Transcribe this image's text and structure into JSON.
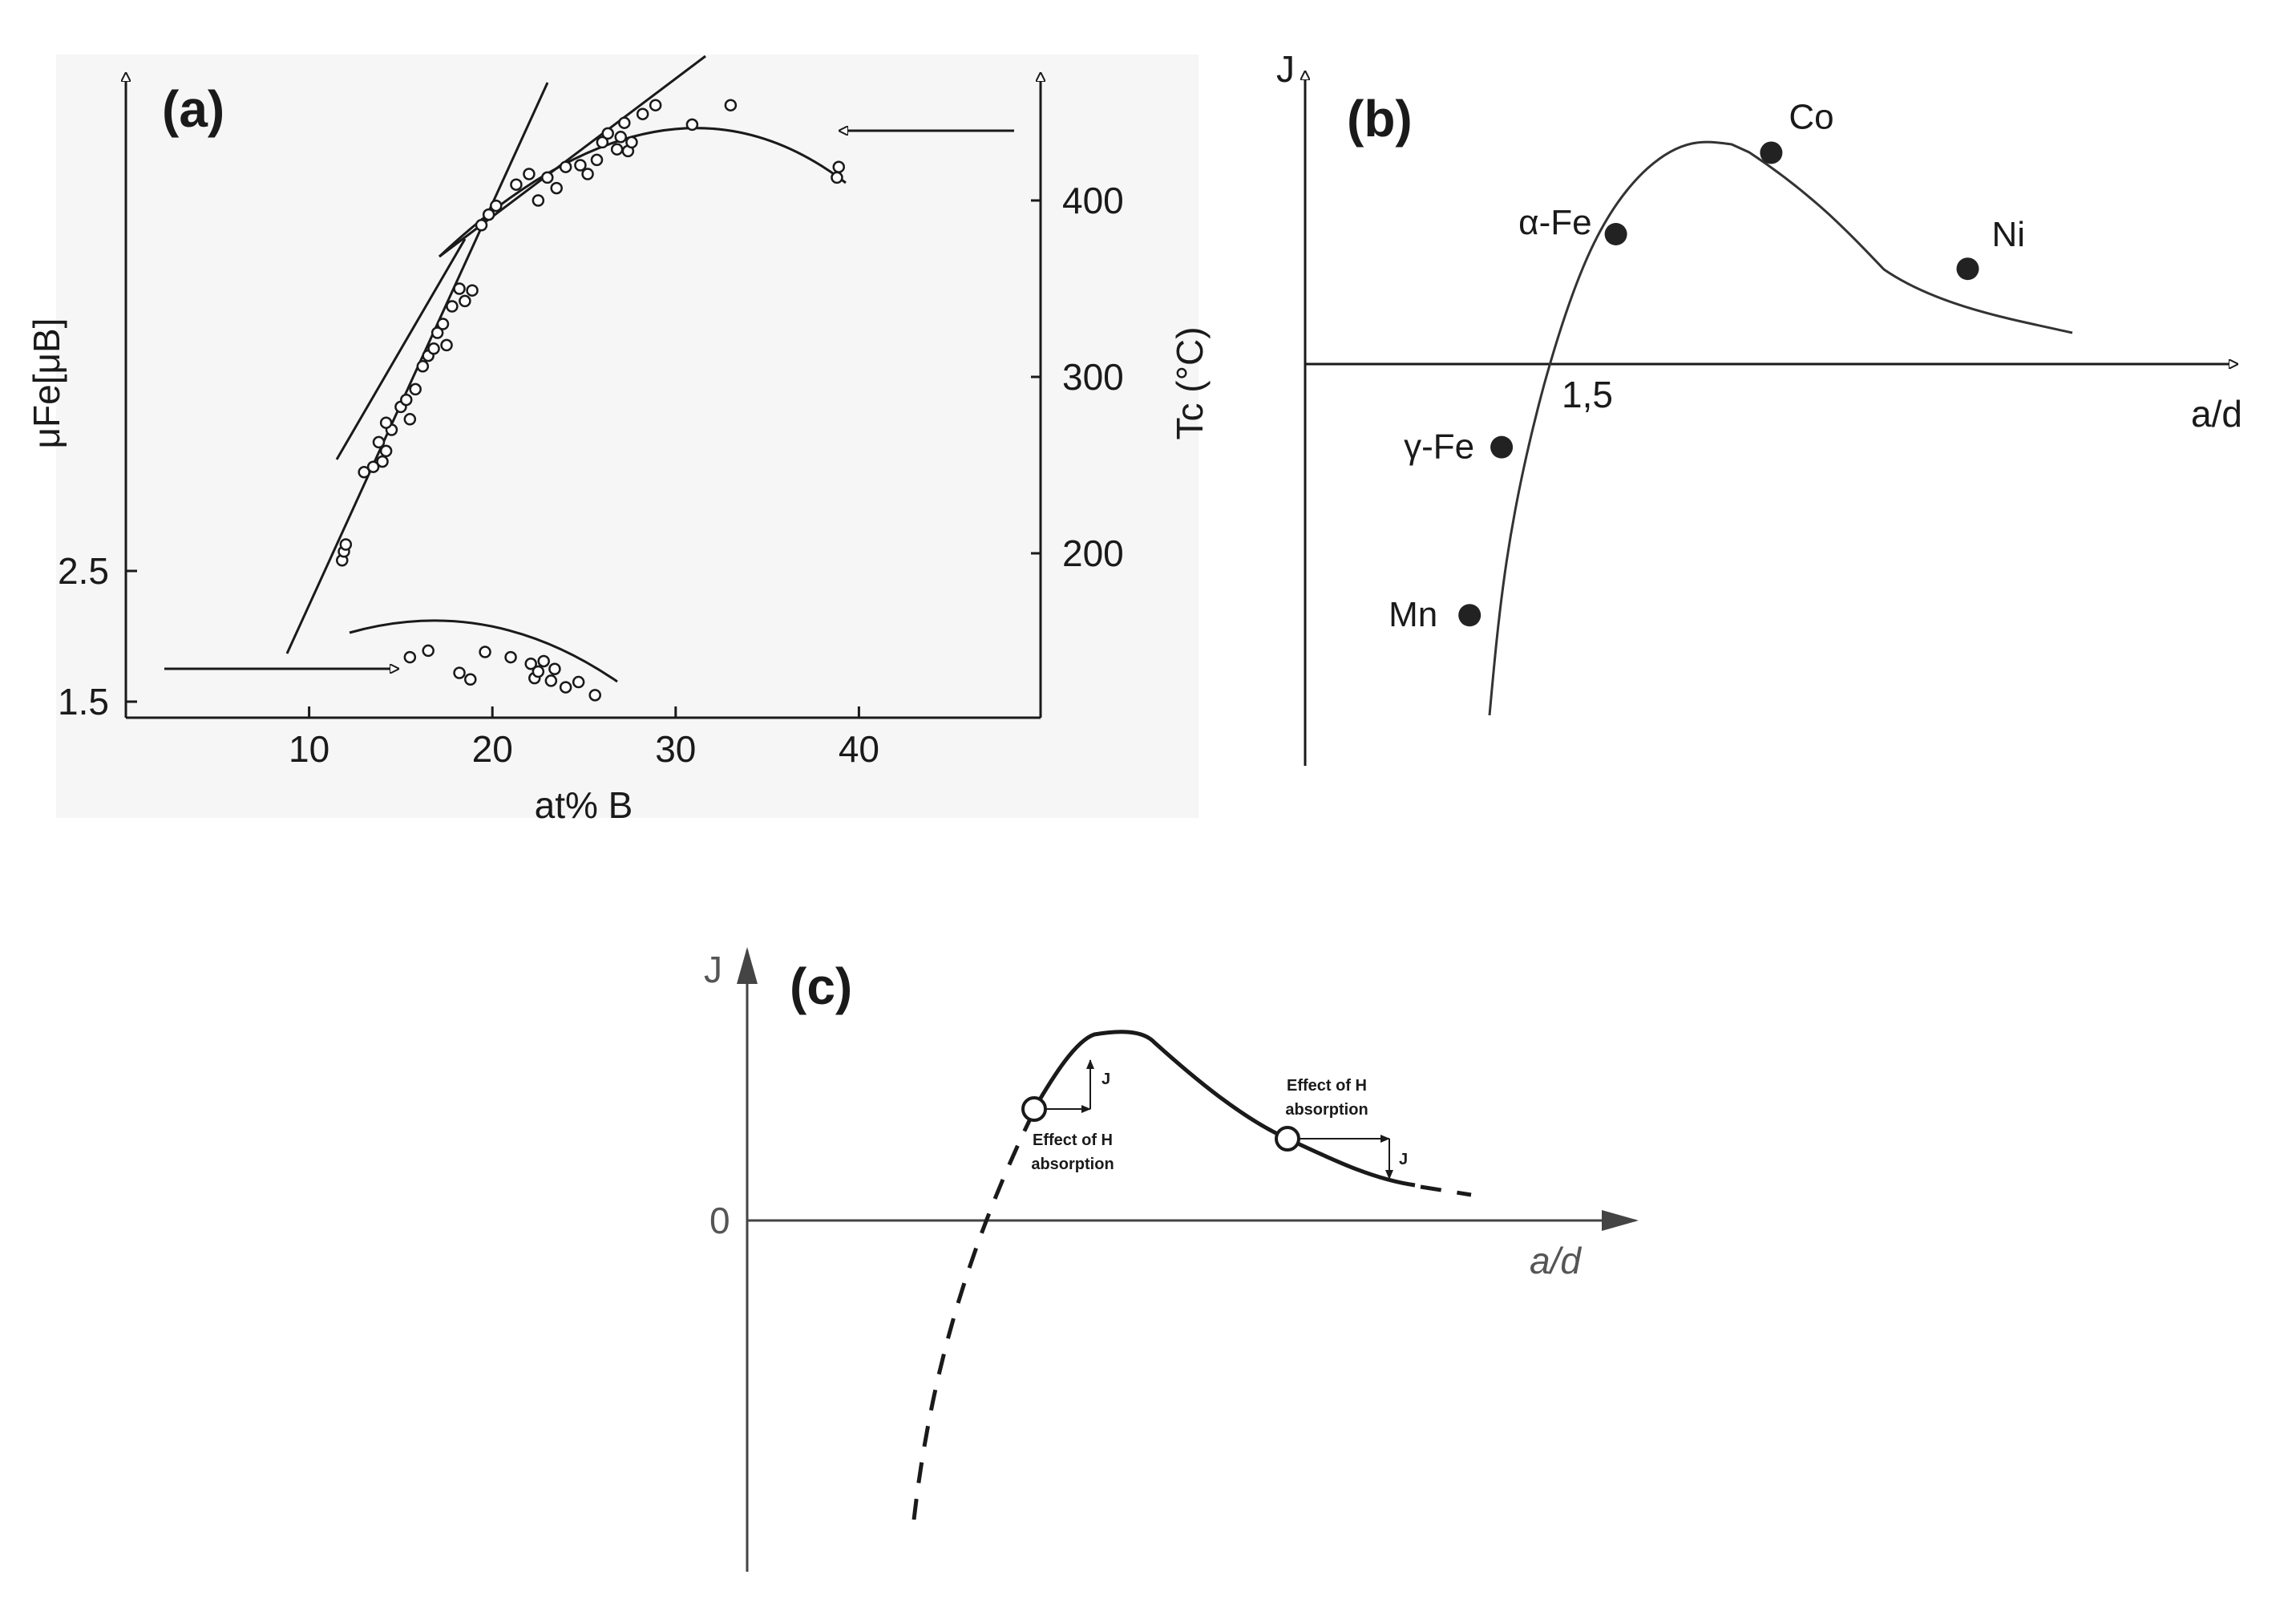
{
  "colors": {
    "ink": "#1a1a1a",
    "panel_a_bg": "#f6f6f6",
    "background": "#ffffff"
  },
  "chart_data": [
    {
      "panel": "(a)",
      "type": "scatter",
      "title": "",
      "xlabel": "at% B",
      "ylabel_left": "μFe[μB]",
      "ylabel_right": "Tc (°C)",
      "xlim": [
        0,
        50
      ],
      "x_ticks": [
        10,
        20,
        30,
        40
      ],
      "y_left_ticks": [
        1.5,
        2.5
      ],
      "y_right_ticks": [
        200,
        300,
        400
      ],
      "grid": false,
      "series": [
        {
          "name": "",
          "axis": "right",
          "points": [
            [
              11.8,
              196
            ],
            [
              11.9,
              201
            ],
            [
              12.0,
              205
            ],
            [
              13.0,
              246
            ],
            [
              13.5,
              249
            ],
            [
              13.8,
              263
            ],
            [
              14.0,
              252
            ],
            [
              14.2,
              258
            ],
            [
              14.5,
              270
            ],
            [
              14.2,
              274
            ],
            [
              15.0,
              283
            ],
            [
              15.3,
              287
            ],
            [
              15.5,
              276
            ],
            [
              15.8,
              293
            ],
            [
              16.2,
              306
            ],
            [
              16.5,
              312
            ],
            [
              16.8,
              316
            ],
            [
              17.0,
              325
            ],
            [
              17.3,
              330
            ],
            [
              17.5,
              318
            ],
            [
              17.8,
              340
            ],
            [
              18.2,
              350
            ],
            [
              18.5,
              343
            ],
            [
              18.9,
              349
            ],
            [
              19.4,
              386
            ],
            [
              19.8,
              392
            ],
            [
              20.2,
              397
            ],
            [
              21.3,
              409
            ],
            [
              22.0,
              415
            ],
            [
              22.5,
              400
            ],
            [
              23.0,
              413
            ],
            [
              23.5,
              407
            ],
            [
              24.0,
              419
            ],
            [
              24.8,
              420
            ],
            [
              25.2,
              415
            ],
            [
              25.7,
              423
            ],
            [
              26.0,
              433
            ],
            [
              26.3,
              438
            ],
            [
              26.8,
              429
            ],
            [
              27.0,
              436
            ],
            [
              27.2,
              444
            ],
            [
              27.4,
              428
            ],
            [
              27.6,
              433
            ],
            [
              28.2,
              449
            ],
            [
              28.9,
              454
            ],
            [
              30.9,
              443
            ],
            [
              33.0,
              454
            ],
            [
              38.8,
              413
            ],
            [
              38.9,
              419
            ]
          ]
        },
        {
          "name": "",
          "axis": "left",
          "points": [
            [
              15.5,
              1.84
            ],
            [
              16.5,
              1.89
            ],
            [
              18.2,
              1.72
            ],
            [
              18.8,
              1.67
            ],
            [
              19.6,
              1.88
            ],
            [
              21.0,
              1.84
            ],
            [
              22.1,
              1.79
            ],
            [
              22.3,
              1.68
            ],
            [
              22.5,
              1.73
            ],
            [
              22.8,
              1.81
            ],
            [
              23.2,
              1.66
            ],
            [
              23.4,
              1.75
            ],
            [
              24.0,
              1.61
            ],
            [
              24.7,
              1.65
            ],
            [
              25.6,
              1.55
            ]
          ]
        }
      ]
    },
    {
      "panel": "(b)",
      "type": "line",
      "title": "",
      "xlabel": "a/d",
      "ylabel": "J",
      "x_tick_label": "1,5",
      "points": [
        {
          "label": "Mn",
          "x": 1.36,
          "y": -1.45
        },
        {
          "label": "γ-Fe",
          "x": 1.43,
          "y": -0.48
        },
        {
          "label": "α-Fe",
          "x": 1.68,
          "y": 0.75
        },
        {
          "label": "Co",
          "x": 2.02,
          "y": 1.22
        },
        {
          "label": "Ni",
          "x": 2.45,
          "y": 0.55
        }
      ]
    },
    {
      "panel": "(c)",
      "type": "line",
      "title": "",
      "xlabel": "a/d",
      "ylabel": "J",
      "y_tick_label": "0",
      "annotations": [
        {
          "line1": "Effect of H",
          "line2": "absorption",
          "arrow_label": "J",
          "j_change": "increase"
        },
        {
          "line1": "Effect of H",
          "line2": "absorption",
          "arrow_label": "J",
          "j_change": "decrease"
        }
      ]
    }
  ]
}
